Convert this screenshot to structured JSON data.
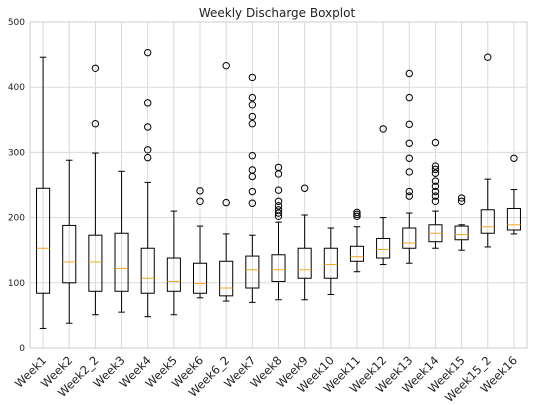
{
  "chart_data": {
    "type": "boxplot",
    "title": "Weekly Discharge Boxplot",
    "xlabel": "",
    "ylabel": "",
    "ylim": [
      0,
      500
    ],
    "yticks": [
      0,
      100,
      200,
      300,
      400,
      500
    ],
    "grid": true,
    "colors": {
      "box": "#000000",
      "median": "#f5a623",
      "grid": "#d9d9d9",
      "frame": "#cccccc"
    },
    "boxes": [
      {
        "label": "Week1",
        "whislo": 30,
        "q1": 84,
        "med": 153,
        "q3": 245,
        "whishi": 446,
        "fliers": []
      },
      {
        "label": "Week2",
        "whislo": 38,
        "q1": 100,
        "med": 132,
        "q3": 188,
        "whishi": 288,
        "fliers": []
      },
      {
        "label": "Week2_2",
        "whislo": 51,
        "q1": 87,
        "med": 132,
        "q3": 173,
        "whishi": 299,
        "fliers": [
          344,
          429
        ]
      },
      {
        "label": "Week3",
        "whislo": 55,
        "q1": 87,
        "med": 122,
        "q3": 176,
        "whishi": 271,
        "fliers": []
      },
      {
        "label": "Week4",
        "whislo": 48,
        "q1": 84,
        "med": 107,
        "q3": 153,
        "whishi": 254,
        "fliers": [
          292,
          304,
          339,
          376,
          453
        ]
      },
      {
        "label": "Week5",
        "whislo": 51,
        "q1": 87,
        "med": 102,
        "q3": 138,
        "whishi": 210,
        "fliers": []
      },
      {
        "label": "Week6",
        "whislo": 77,
        "q1": 84,
        "med": 99,
        "q3": 130,
        "whishi": 187,
        "fliers": [
          225,
          241
        ]
      },
      {
        "label": "Week6_2",
        "whislo": 72,
        "q1": 80,
        "med": 92,
        "q3": 133,
        "whishi": 175,
        "fliers": [
          223,
          433
        ]
      },
      {
        "label": "Week7",
        "whislo": 70,
        "q1": 92,
        "med": 120,
        "q3": 141,
        "whishi": 173,
        "fliers": [
          222,
          240,
          263,
          273,
          295,
          344,
          355,
          373,
          384,
          415
        ]
      },
      {
        "label": "Week8",
        "whislo": 74,
        "q1": 102,
        "med": 120,
        "q3": 143,
        "whishi": 193,
        "fliers": [
          202,
          207,
          212,
          218,
          225,
          242,
          267,
          277
        ]
      },
      {
        "label": "Week9",
        "whislo": 74,
        "q1": 107,
        "med": 120,
        "q3": 153,
        "whishi": 204,
        "fliers": [
          245
        ]
      },
      {
        "label": "Week10",
        "whislo": 82,
        "q1": 107,
        "med": 128,
        "q3": 153,
        "whishi": 184,
        "fliers": []
      },
      {
        "label": "Week11",
        "whislo": 117,
        "q1": 133,
        "med": 140,
        "q3": 156,
        "whishi": 186,
        "fliers": [
          202,
          205,
          208
        ]
      },
      {
        "label": "Week12",
        "whislo": 128,
        "q1": 138,
        "med": 151,
        "q3": 168,
        "whishi": 200,
        "fliers": [
          336
        ]
      },
      {
        "label": "Week13",
        "whislo": 130,
        "q1": 153,
        "med": 161,
        "q3": 184,
        "whishi": 207,
        "fliers": [
          233,
          240,
          270,
          291,
          314,
          343,
          384,
          421
        ]
      },
      {
        "label": "Week14",
        "whislo": 153,
        "q1": 163,
        "med": 176,
        "q3": 189,
        "whishi": 210,
        "fliers": [
          225,
          233,
          240,
          248,
          256,
          268,
          274,
          279,
          315
        ]
      },
      {
        "label": "Week15",
        "whislo": 150,
        "q1": 166,
        "med": 174,
        "q3": 187,
        "whishi": 189,
        "fliers": [
          225,
          230
        ]
      },
      {
        "label": "Week15_2",
        "whislo": 155,
        "q1": 176,
        "med": 186,
        "q3": 212,
        "whishi": 259,
        "fliers": [
          446
        ]
      },
      {
        "label": "Week16",
        "whislo": 175,
        "q1": 181,
        "med": 189,
        "q3": 214,
        "whishi": 243,
        "fliers": [
          291
        ]
      }
    ]
  }
}
